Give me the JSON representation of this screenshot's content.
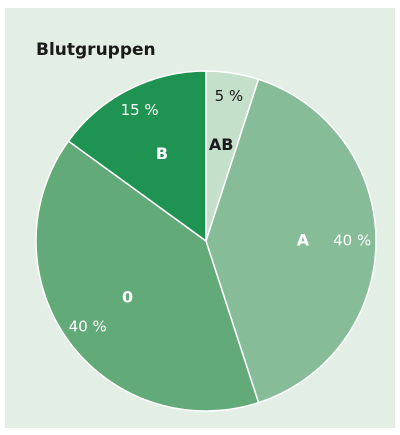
{
  "chart_data": {
    "type": "pie",
    "title": "Blutgruppen",
    "categories": [
      "AB",
      "A",
      "0",
      "B"
    ],
    "values": [
      5,
      40,
      40,
      15
    ],
    "value_labels": [
      "5 %",
      "40 %",
      "40 %",
      "15 %"
    ],
    "colors": [
      "#c4dfca",
      "#86bc97",
      "#62aa78",
      "#1f9352"
    ]
  }
}
